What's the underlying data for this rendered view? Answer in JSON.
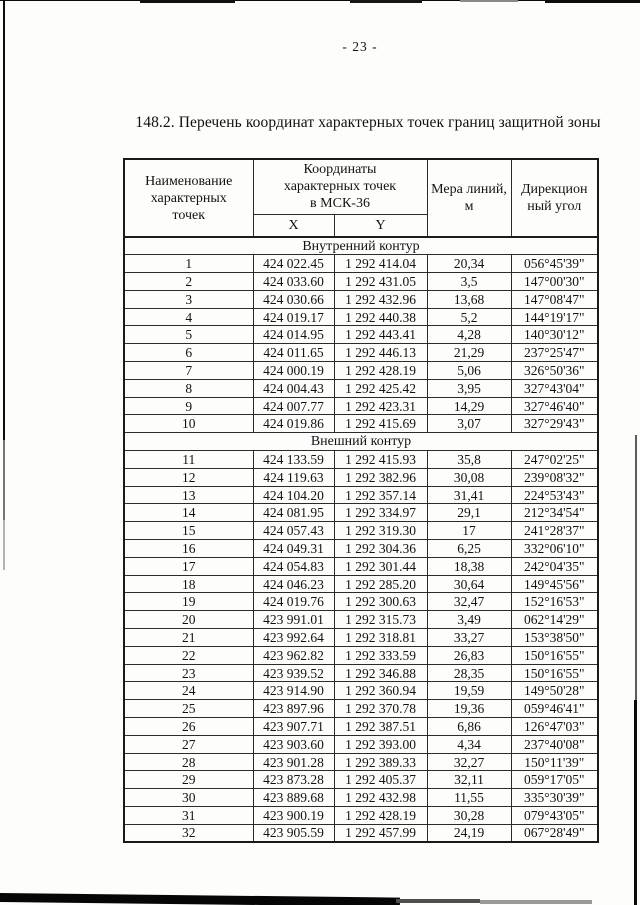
{
  "page": {
    "number": "- 23 -",
    "title": "148.2. Перечень координат характерных точек границ защитной зоны"
  },
  "table": {
    "headers": {
      "name": "Наименование характерных точек",
      "coords": "Координаты характерных точек в МСК-36",
      "x": "X",
      "y": "Y",
      "length": "Мера линий, м",
      "angle": "Дирекцион ный угол"
    },
    "sections": [
      {
        "title": "Внутренний контур",
        "rows": [
          [
            "1",
            "424 022.45",
            "1 292 414.04",
            "20,34",
            "056°45'39\""
          ],
          [
            "2",
            "424 033.60",
            "1 292 431.05",
            "3,5",
            "147°00'30\""
          ],
          [
            "3",
            "424 030.66",
            "1 292 432.96",
            "13,68",
            "147°08'47\""
          ],
          [
            "4",
            "424 019.17",
            "1 292 440.38",
            "5,2",
            "144°19'17\""
          ],
          [
            "5",
            "424 014.95",
            "1 292 443.41",
            "4,28",
            "140°30'12\""
          ],
          [
            "6",
            "424 011.65",
            "1 292 446.13",
            "21,29",
            "237°25'47\""
          ],
          [
            "7",
            "424 000.19",
            "1 292 428.19",
            "5,06",
            "326°50'36\""
          ],
          [
            "8",
            "424 004.43",
            "1 292 425.42",
            "3,95",
            "327°43'04\""
          ],
          [
            "9",
            "424 007.77",
            "1 292 423.31",
            "14,29",
            "327°46'40\""
          ],
          [
            "10",
            "424 019.86",
            "1 292 415.69",
            "3,07",
            "327°29'43\""
          ]
        ]
      },
      {
        "title": "Внешний контур",
        "rows": [
          [
            "11",
            "424 133.59",
            "1 292 415.93",
            "35,8",
            "247°02'25\""
          ],
          [
            "12",
            "424 119.63",
            "1 292 382.96",
            "30,08",
            "239°08'32\""
          ],
          [
            "13",
            "424 104.20",
            "1 292 357.14",
            "31,41",
            "224°53'43\""
          ],
          [
            "14",
            "424 081.95",
            "1 292 334.97",
            "29,1",
            "212°34'54\""
          ],
          [
            "15",
            "424 057.43",
            "1 292 319.30",
            "17",
            "241°28'37\""
          ],
          [
            "16",
            "424 049.31",
            "1 292 304.36",
            "6,25",
            "332°06'10\""
          ],
          [
            "17",
            "424 054.83",
            "1 292 301.44",
            "18,38",
            "242°04'35\""
          ],
          [
            "18",
            "424 046.23",
            "1 292 285.20",
            "30,64",
            "149°45'56\""
          ],
          [
            "19",
            "424 019.76",
            "1 292 300.63",
            "32,47",
            "152°16'53\""
          ],
          [
            "20",
            "423 991.01",
            "1 292 315.73",
            "3,49",
            "062°14'29\""
          ],
          [
            "21",
            "423 992.64",
            "1 292 318.81",
            "33,27",
            "153°38'50\""
          ],
          [
            "22",
            "423 962.82",
            "1 292 333.59",
            "26,83",
            "150°16'55\""
          ],
          [
            "23",
            "423 939.52",
            "1 292 346.88",
            "28,35",
            "150°16'55\""
          ],
          [
            "24",
            "423 914.90",
            "1 292 360.94",
            "19,59",
            "149°50'28\""
          ],
          [
            "25",
            "423 897.96",
            "1 292 370.78",
            "19,36",
            "059°46'41\""
          ],
          [
            "26",
            "423 907.71",
            "1 292 387.51",
            "6,86",
            "126°47'03\""
          ],
          [
            "27",
            "423 903.60",
            "1 292 393.00",
            "4,34",
            "237°40'08\""
          ],
          [
            "28",
            "423 901.28",
            "1 292 389.33",
            "32,27",
            "150°11'39\""
          ],
          [
            "29",
            "423 873.28",
            "1 292 405.37",
            "32,11",
            "059°17'05\""
          ],
          [
            "30",
            "423 889.68",
            "1 292 432.98",
            "11,55",
            "335°30'39\""
          ],
          [
            "31",
            "423 900.19",
            "1 292 428.19",
            "30,28",
            "079°43'05\""
          ],
          [
            "32",
            "423 905.59",
            "1 292 457.99",
            "24,19",
            "067°28'49\""
          ]
        ]
      }
    ]
  }
}
